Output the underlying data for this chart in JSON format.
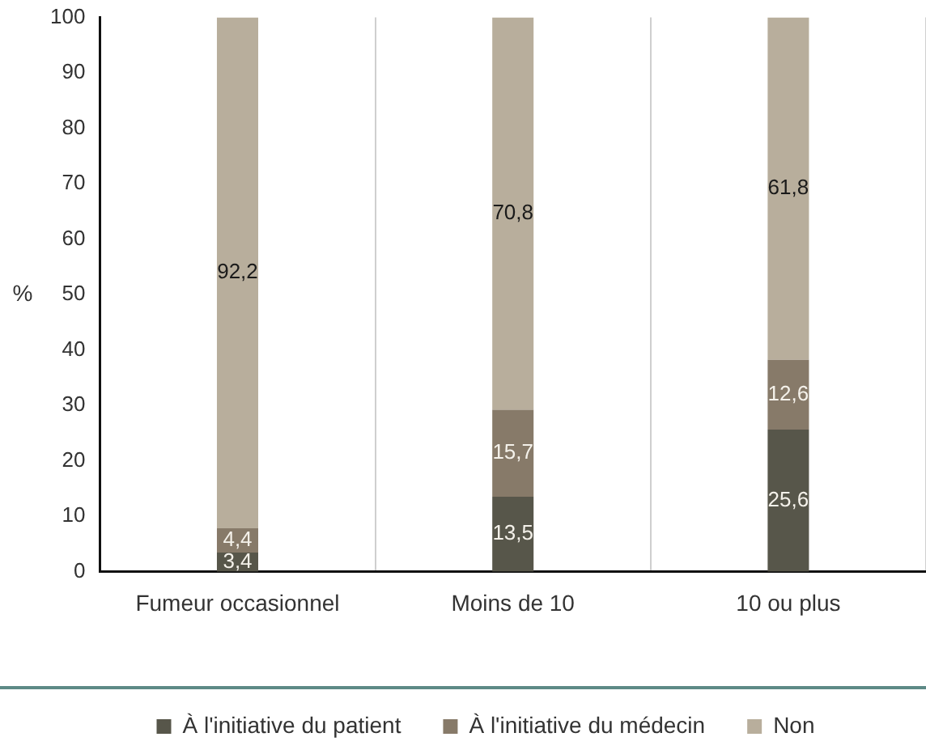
{
  "chart_data": {
    "type": "bar",
    "stacked": true,
    "ylabel": "%",
    "categories": [
      "Fumeur occasionnel",
      "Moins de 10",
      "10 ou plus"
    ],
    "series": [
      {
        "name": "À l'initiative du patient",
        "color": "#57564a",
        "values": [
          3.4,
          13.5,
          25.6
        ],
        "value_labels": [
          "3,4",
          "13,5",
          "25,6"
        ]
      },
      {
        "name": "À l'initiative du médecin",
        "color": "#877a69",
        "values": [
          4.4,
          15.7,
          12.6
        ],
        "value_labels": [
          "4,4",
          "15,7",
          "12,6"
        ]
      },
      {
        "name": "Non",
        "color": "#b8ae9c",
        "values": [
          92.2,
          70.8,
          61.8
        ],
        "value_labels": [
          "92,2",
          "70,8",
          "61,8"
        ]
      }
    ],
    "ylim": [
      0,
      100
    ],
    "yticks": [
      0,
      10,
      20,
      30,
      40,
      50,
      60,
      70,
      80,
      90,
      100
    ],
    "grid": "x",
    "legend": "bottom"
  }
}
